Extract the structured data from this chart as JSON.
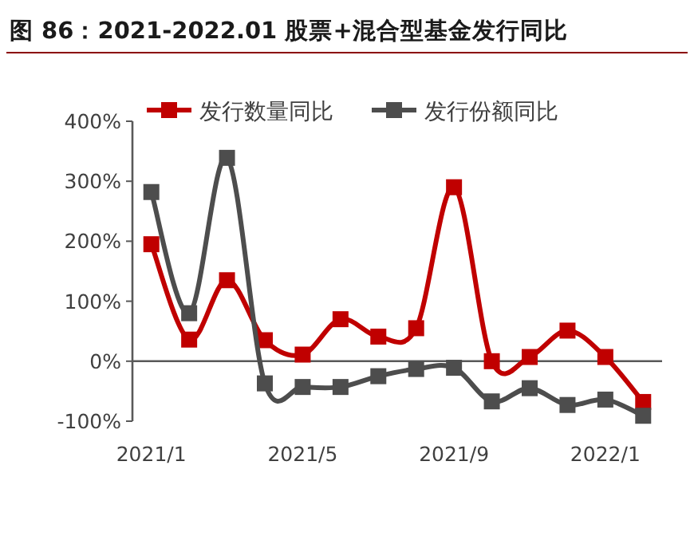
{
  "chart_data": {
    "type": "line",
    "title": "图 86：2021-2022.01 股票+混合型基金发行同比",
    "categories": [
      "2021/1",
      null,
      null,
      null,
      "2021/5",
      null,
      null,
      null,
      "2021/9",
      null,
      null,
      null,
      "2022/1",
      null
    ],
    "series": [
      {
        "name": "发行数量同比",
        "color": "#c00000",
        "values": [
          195,
          36,
          135,
          35,
          11,
          70,
          41,
          55,
          290,
          0,
          7,
          51,
          7,
          -68
        ]
      },
      {
        "name": "发行份额同比",
        "color": "#4d4d4d",
        "values": [
          282,
          80,
          339,
          -37,
          -43,
          -43,
          -25,
          -13,
          -11,
          -67,
          -45,
          -73,
          -64,
          -91
        ]
      }
    ],
    "ylim": [
      -100,
      400
    ],
    "yticks": [
      {
        "value": -100,
        "label": "-100%"
      },
      {
        "value": 0,
        "label": "0%"
      },
      {
        "value": 100,
        "label": "100%"
      },
      {
        "value": 200,
        "label": "200%"
      },
      {
        "value": 300,
        "label": "300%"
      },
      {
        "value": 400,
        "label": "400%"
      }
    ],
    "legend": "top",
    "marker": "square"
  }
}
